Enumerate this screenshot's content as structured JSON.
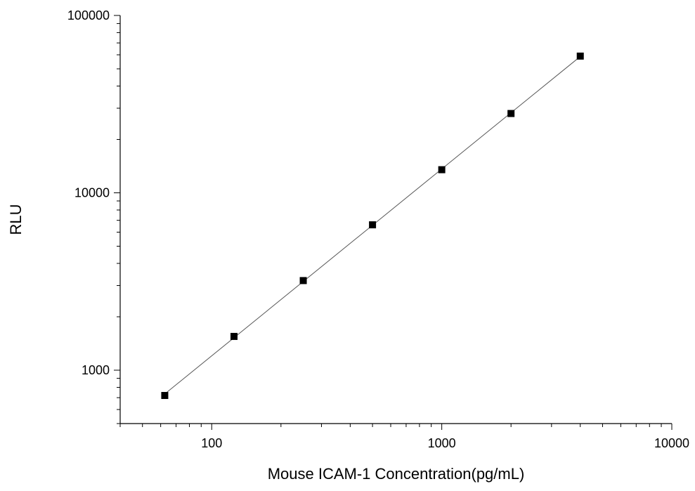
{
  "chart_data": {
    "type": "scatter",
    "title": "",
    "xlabel": "Mouse ICAM-1 Concentration(pg/mL)",
    "ylabel": "RLU",
    "x_scale": "log",
    "y_scale": "log",
    "xlim": [
      40,
      10000
    ],
    "ylim": [
      500,
      100000
    ],
    "x_ticks": [
      {
        "value": 100,
        "label": "100"
      },
      {
        "value": 1000,
        "label": "1000"
      },
      {
        "value": 10000,
        "label": "10000"
      }
    ],
    "y_ticks": [
      {
        "value": 1000,
        "label": "1000"
      },
      {
        "value": 10000,
        "label": "10000"
      },
      {
        "value": 100000,
        "label": "100000"
      }
    ],
    "grid": false,
    "legend": "none",
    "fit_line": true,
    "colors": {
      "marker": "#000000",
      "line": "#555555",
      "axis": "#000000"
    },
    "series": [
      {
        "x": [
          62.5,
          125,
          250,
          500,
          1000,
          2000,
          4000
        ],
        "y": [
          720,
          1550,
          3200,
          6600,
          13500,
          28000,
          59000
        ]
      }
    ]
  }
}
